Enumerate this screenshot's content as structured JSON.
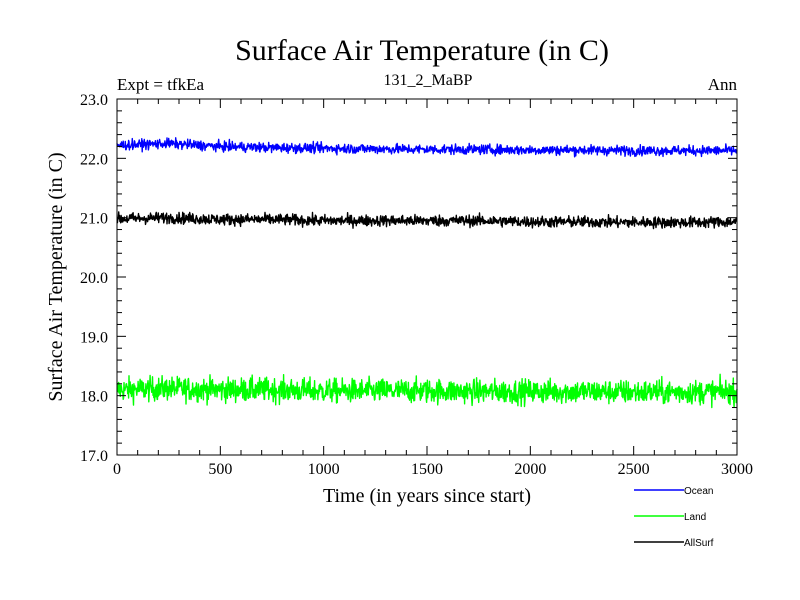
{
  "chart_data": {
    "type": "line",
    "title": "Surface Air Temperature (in C)",
    "subtitle": "131_2_MaBP",
    "left_label": "Expt = tfkEa",
    "right_label": "Ann",
    "xlabel": "Time (in years since start)",
    "ylabel": "Surface Air Temperature (in C)",
    "xlim": [
      0,
      3000
    ],
    "ylim": [
      17.0,
      23.0
    ],
    "x_ticks": [
      0,
      500,
      1000,
      1500,
      2000,
      2500,
      3000
    ],
    "x_tick_labels": [
      "0",
      "500",
      "1000",
      "1500",
      "2000",
      "2500",
      "3000"
    ],
    "y_ticks": [
      17.0,
      18.0,
      19.0,
      20.0,
      21.0,
      22.0,
      23.0
    ],
    "y_tick_labels": [
      "17.0",
      "18.0",
      "19.0",
      "20.0",
      "21.0",
      "22.0",
      "23.0"
    ],
    "grid": false,
    "legend_position": "bottom-right",
    "series": [
      {
        "name": "Ocean",
        "color": "#0000ff",
        "x": [
          0,
          250,
          500,
          750,
          1000,
          1250,
          1500,
          1750,
          2000,
          2250,
          2500,
          2750,
          3000
        ],
        "y": [
          22.22,
          22.25,
          22.2,
          22.18,
          22.17,
          22.16,
          22.15,
          22.15,
          22.14,
          22.14,
          22.13,
          22.13,
          22.13
        ],
        "noise_amplitude": 0.07
      },
      {
        "name": "Land",
        "color": "#00ff00",
        "x": [
          0,
          250,
          500,
          750,
          1000,
          1250,
          1500,
          1750,
          2000,
          2250,
          2500,
          2750,
          3000
        ],
        "y": [
          18.1,
          18.12,
          18.1,
          18.1,
          18.08,
          18.08,
          18.08,
          18.07,
          18.07,
          18.07,
          18.06,
          18.06,
          18.07
        ],
        "noise_amplitude": 0.17
      },
      {
        "name": "AllSurf",
        "color": "#000000",
        "x": [
          0,
          250,
          500,
          750,
          1000,
          1250,
          1500,
          1750,
          2000,
          2250,
          2500,
          2750,
          3000
        ],
        "y": [
          20.98,
          21.0,
          20.97,
          20.97,
          20.95,
          20.95,
          20.95,
          20.95,
          20.93,
          20.93,
          20.92,
          20.92,
          20.93
        ],
        "noise_amplitude": 0.08
      }
    ]
  }
}
